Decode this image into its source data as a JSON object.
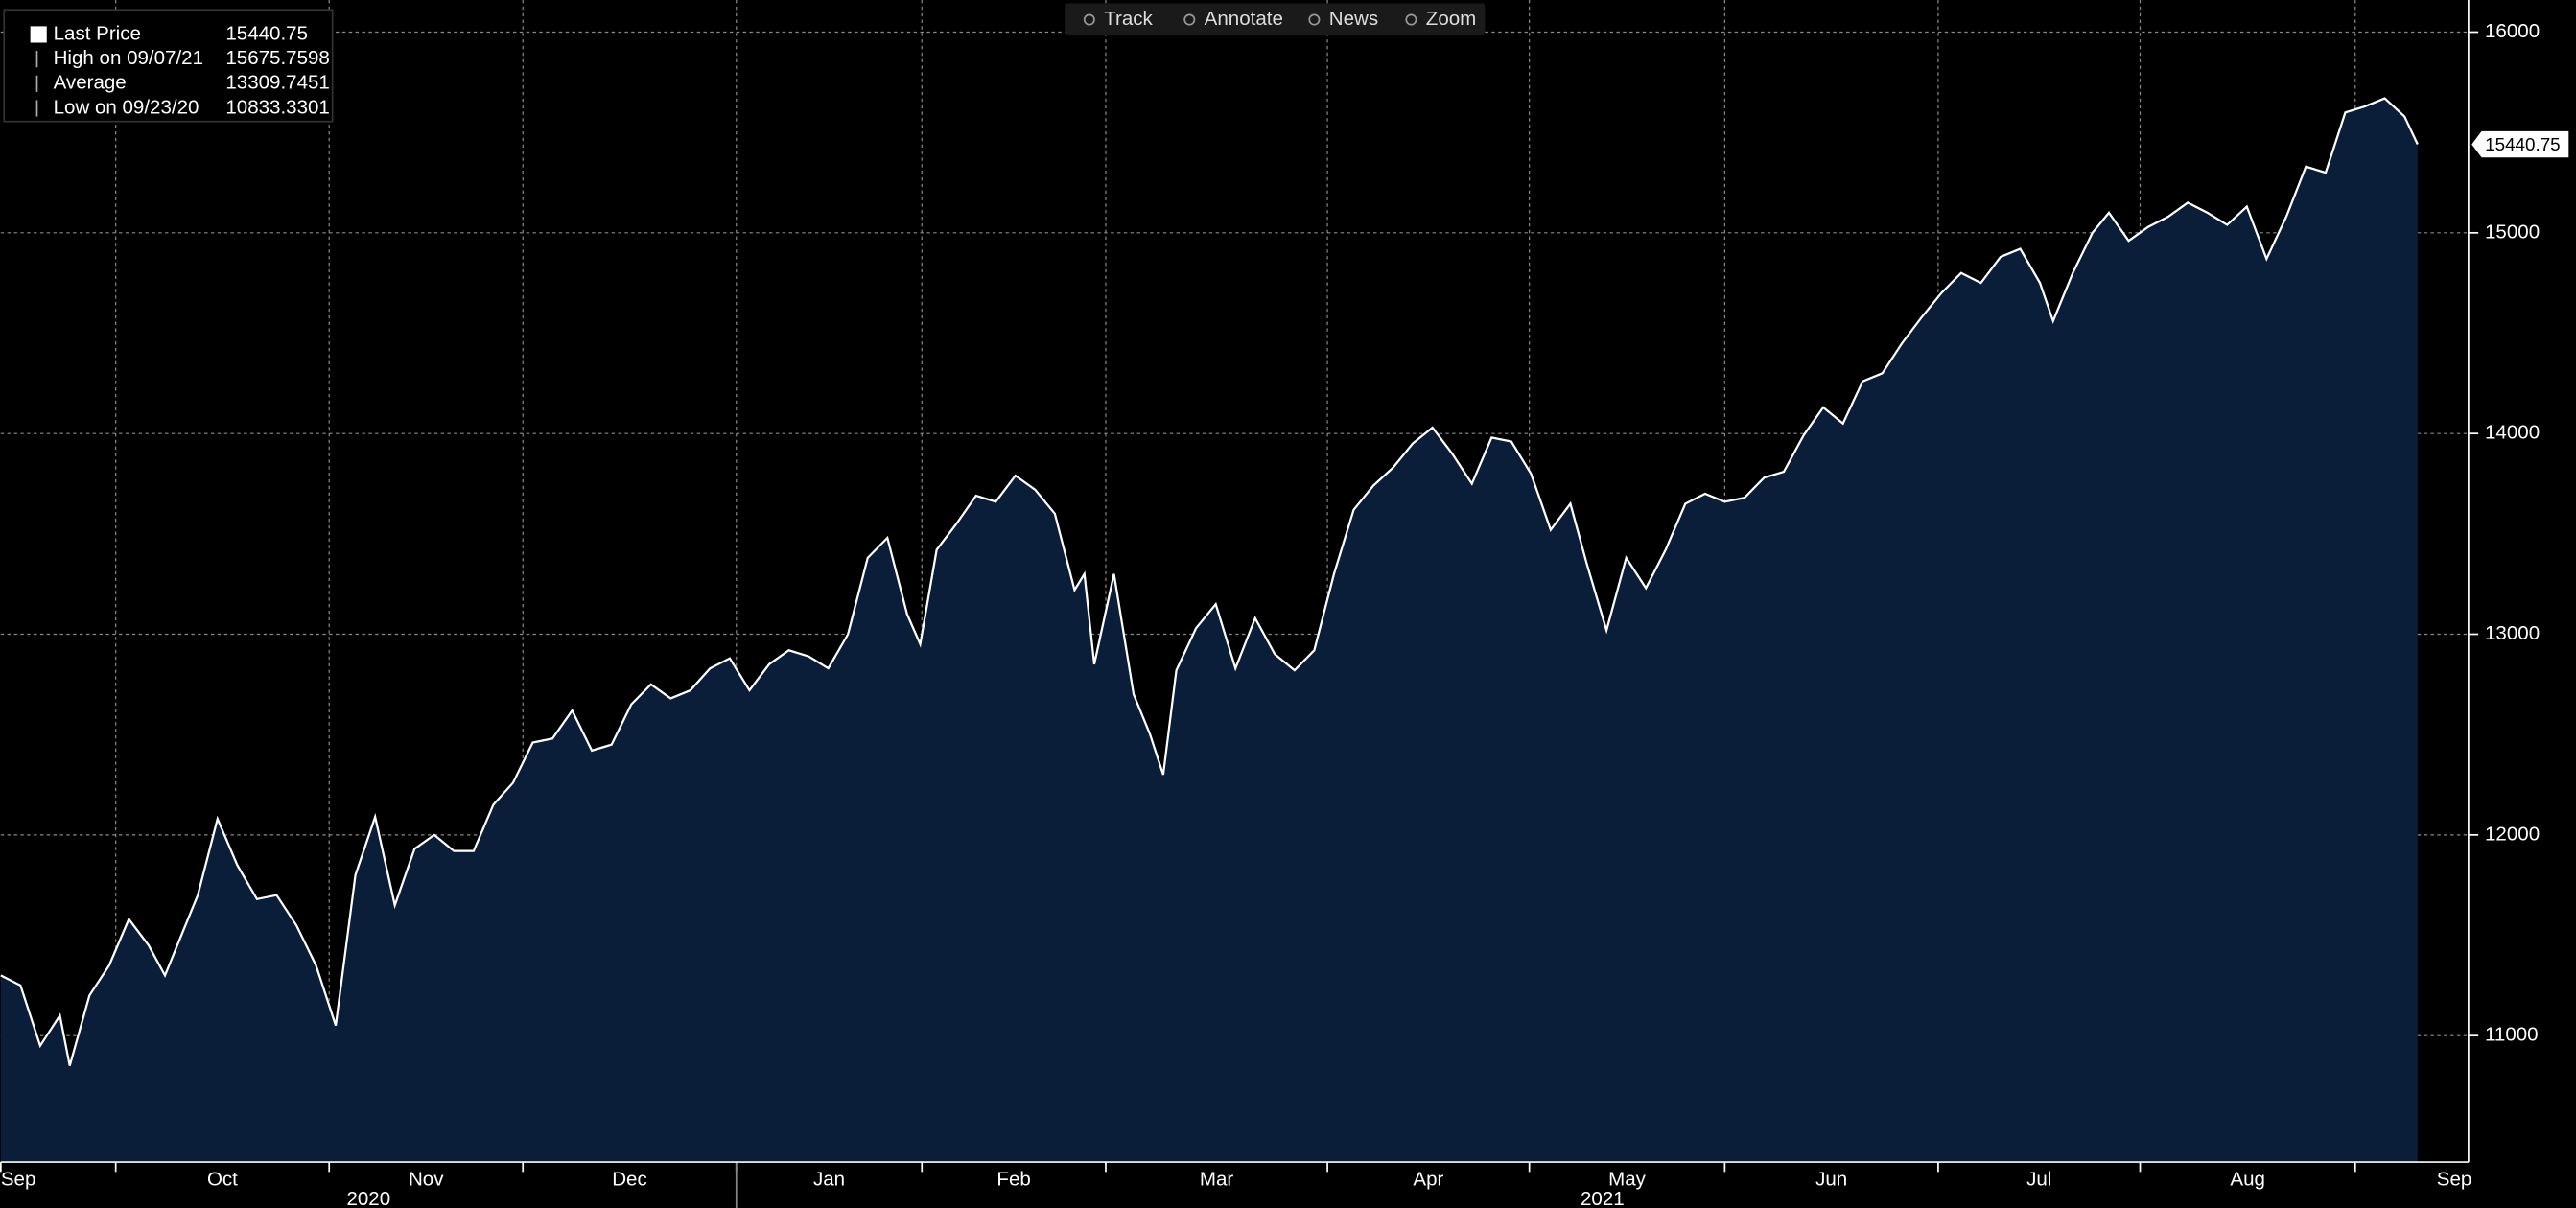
{
  "chart_data": {
    "type": "area",
    "legend": [
      {
        "label": "Last Price",
        "value": 15440.75
      },
      {
        "label": "High on 09/07/21",
        "value": 15675.7598
      },
      {
        "label": "Average",
        "value": 13309.7451
      },
      {
        "label": "Low on 09/23/20",
        "value": 10833.3301
      }
    ],
    "toolbar": [
      "Track",
      "Annotate",
      "News",
      "Zoom"
    ],
    "series": [
      {
        "name": "Last Price",
        "color": "#ffffff",
        "fill": "#0a1e3a",
        "x": [
          0,
          12,
          24,
          36,
          42,
          54,
          66,
          78,
          90,
          100,
          110,
          120,
          132,
          144,
          156,
          168,
          180,
          192,
          204,
          216,
          228,
          240,
          252,
          264,
          276,
          288,
          300,
          312,
          324,
          336,
          348,
          360,
          372,
          384,
          396,
          408,
          420,
          432,
          444,
          456,
          468,
          480,
          492,
          504,
          516,
          528,
          540,
          552,
          560,
          570,
          582,
          594,
          606,
          618,
          630,
          642,
          654,
          660,
          666,
          678,
          690,
          700,
          708,
          716,
          728,
          740,
          752,
          764,
          776,
          788,
          800,
          812,
          824,
          836,
          848,
          860,
          872,
          884,
          896,
          908,
          920,
          932,
          944,
          956,
          966,
          978,
          990,
          1002,
          1014,
          1026,
          1038,
          1050,
          1062,
          1074,
          1086,
          1098,
          1110,
          1122,
          1134,
          1146,
          1158,
          1170,
          1182,
          1194,
          1206,
          1218,
          1230,
          1242,
          1250,
          1262,
          1274,
          1284,
          1296,
          1308,
          1320,
          1332,
          1344,
          1356,
          1368,
          1380,
          1392,
          1404,
          1416,
          1428,
          1440,
          1452,
          1464,
          1472
        ],
        "values": [
          11300,
          11250,
          10950,
          11100,
          10850,
          11200,
          11350,
          11580,
          11450,
          11300,
          11500,
          11700,
          12080,
          11850,
          11680,
          11700,
          11550,
          11350,
          11050,
          11800,
          12090,
          11650,
          11930,
          12000,
          11920,
          11920,
          12150,
          12260,
          12460,
          12480,
          12620,
          12420,
          12450,
          12650,
          12750,
          12680,
          12720,
          12830,
          12880,
          12720,
          12850,
          12920,
          12890,
          12830,
          13000,
          13380,
          13480,
          13100,
          12950,
          13420,
          13550,
          13690,
          13660,
          13790,
          13720,
          13600,
          13220,
          13300,
          12850,
          13300,
          12700,
          12500,
          12300,
          12820,
          13030,
          13150,
          12830,
          13080,
          12900,
          12820,
          12920,
          13300,
          13620,
          13740,
          13830,
          13950,
          14030,
          13900,
          13750,
          13980,
          13960,
          13800,
          13520,
          13650,
          13350,
          13020,
          13380,
          13230,
          13420,
          13650,
          13700,
          13660,
          13680,
          13780,
          13810,
          13990,
          14130,
          14050,
          14260,
          14300,
          14450,
          14580,
          14700,
          14800,
          14750,
          14880,
          14920,
          14750,
          14560,
          14800,
          15000,
          15100,
          14960,
          15030,
          15080,
          15150,
          15100,
          15040,
          15130,
          14870,
          15080,
          15330,
          15300,
          15600,
          15630,
          15670,
          15580,
          15440.75
        ]
      }
    ],
    "xlim": [
      0,
      1503
    ],
    "xticks": [
      {
        "value": 0,
        "label": "Sep"
      },
      {
        "value": 70,
        "label": "Oct"
      },
      {
        "value": 200,
        "label": "Nov"
      },
      {
        "value": 318,
        "label": "Dec"
      },
      {
        "value": 448,
        "label": "Jan"
      },
      {
        "value": 561,
        "label": "Feb"
      },
      {
        "value": 673,
        "label": "Mar"
      },
      {
        "value": 808,
        "label": "Apr"
      },
      {
        "value": 931,
        "label": "May"
      },
      {
        "value": 1050,
        "label": "Jun"
      },
      {
        "value": 1180,
        "label": "Jul"
      },
      {
        "value": 1303,
        "label": "Aug"
      },
      {
        "value": 1434,
        "label": "Sep"
      }
    ],
    "years": [
      {
        "value": 0,
        "label": "2020"
      },
      {
        "value": 448,
        "label": "2021"
      }
    ],
    "ylim": [
      10370,
      16160
    ],
    "yticks": [
      11000,
      12000,
      13000,
      14000,
      15000,
      16000
    ],
    "grid": true
  }
}
